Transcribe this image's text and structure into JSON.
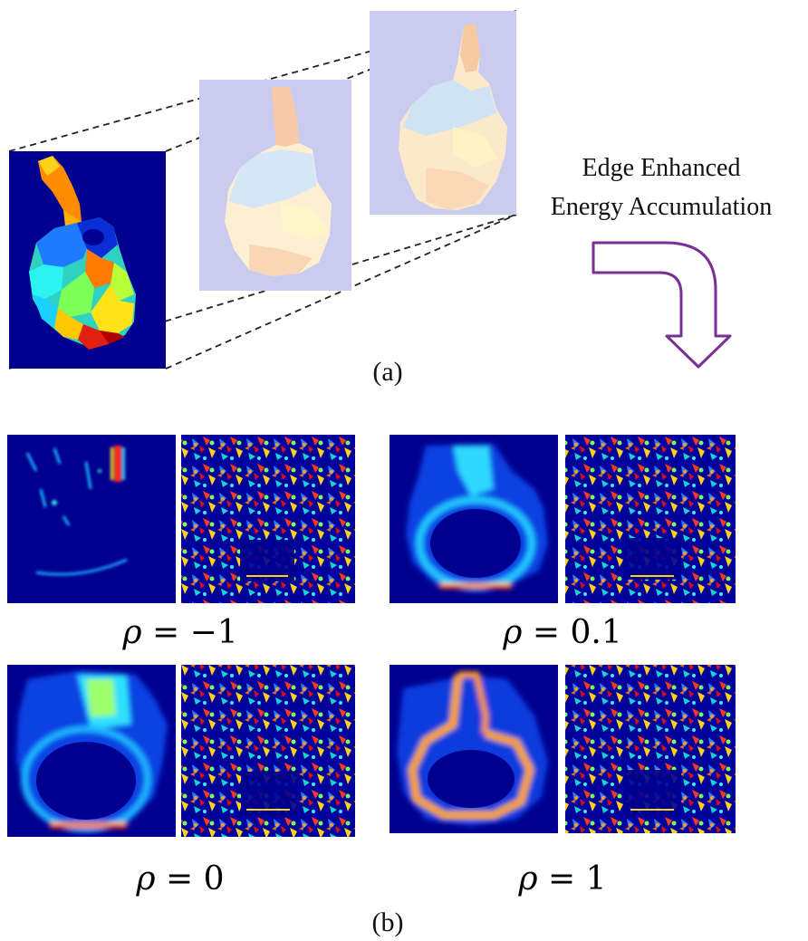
{
  "part_a": {
    "caption": "(a)",
    "arrow_text_line1": "Edge Enhanced",
    "arrow_text_line2": "Energy Accumulation",
    "arrow_color": "#7a2f96",
    "frame_tint": "#c9cbef"
  },
  "part_b": {
    "caption": "(b)",
    "panels": [
      {
        "rho_symbol": "ρ",
        "rho_rest": " = −1"
      },
      {
        "rho_symbol": "ρ",
        "rho_rest": " = 0.1"
      },
      {
        "rho_symbol": "ρ",
        "rho_rest": " = 0"
      },
      {
        "rho_symbol": "ρ",
        "rho_rest": " = 1"
      }
    ],
    "background_color": "#00008f"
  }
}
